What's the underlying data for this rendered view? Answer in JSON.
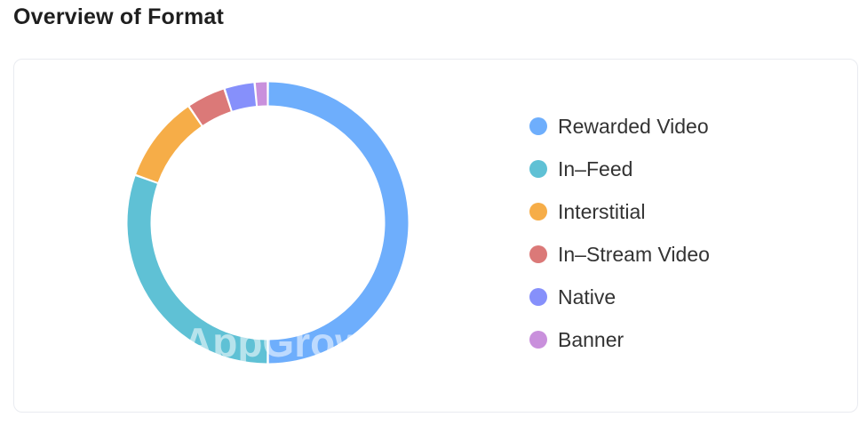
{
  "header": {
    "title": "Overview of Format"
  },
  "watermark": "AppGrowing",
  "chart_data": {
    "type": "pie",
    "donut": true,
    "legend_position": "right",
    "categories": [
      "Rewarded Video",
      "In-Feed",
      "Interstitial",
      "In-Stream Video",
      "Native",
      "Banner"
    ],
    "values": [
      50.0,
      30.5,
      10.0,
      4.5,
      3.5,
      1.5
    ],
    "colors": [
      "#6eaefc",
      "#5fc1d5",
      "#f6ad48",
      "#db7978",
      "#8690fb",
      "#c990dc"
    ],
    "legend_labels": [
      "Rewarded Video",
      "In–Feed",
      "Interstitial",
      "In–Stream Video",
      "Native",
      "Banner"
    ]
  }
}
